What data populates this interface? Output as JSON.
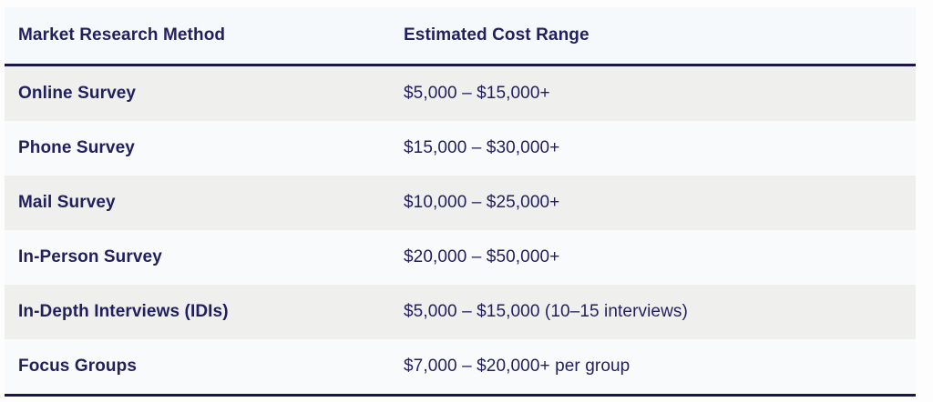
{
  "table": {
    "columns": [
      {
        "label": "Market Research Method"
      },
      {
        "label": "Estimated Cost Range"
      }
    ],
    "rows": [
      {
        "method": "Online Survey",
        "cost": "$5,000 – $15,000+"
      },
      {
        "method": "Phone Survey",
        "cost": "$15,000 – $30,000+"
      },
      {
        "method": "Mail Survey",
        "cost": "$10,000 – $25,000+"
      },
      {
        "method": "In-Person Survey",
        "cost": "$20,000 – $50,000+"
      },
      {
        "method": "In-Depth Interviews (IDIs)",
        "cost": "$5,000 – $15,000 (10–15 interviews)"
      },
      {
        "method": "Focus Groups",
        "cost": "$7,000 – $20,000+ per group"
      }
    ],
    "colors": {
      "text_navy": "#221f5e",
      "rule_navy": "#1a164a",
      "row_alt_bg": "#efefee",
      "row_bg": "#f8fafc",
      "header_bg": "#f6f9fb",
      "page_bg": "#fdfdfd"
    }
  },
  "chart_data": {
    "type": "table",
    "title": "",
    "columns": [
      "Market Research Method",
      "Estimated Cost Range"
    ],
    "rows": [
      [
        "Online Survey",
        "$5,000 – $15,000+"
      ],
      [
        "Phone Survey",
        "$15,000 – $30,000+"
      ],
      [
        "Mail Survey",
        "$10,000 – $25,000+"
      ],
      [
        "In-Person Survey",
        "$20,000 – $50,000+"
      ],
      [
        "In-Depth Interviews (IDIs)",
        "$5,000 – $15,000 (10–15 interviews)"
      ],
      [
        "Focus Groups",
        "$7,000 – $20,000+ per group"
      ]
    ],
    "layout": {
      "zebra_striping": true,
      "header_divider": true,
      "bottom_divider": true
    }
  }
}
